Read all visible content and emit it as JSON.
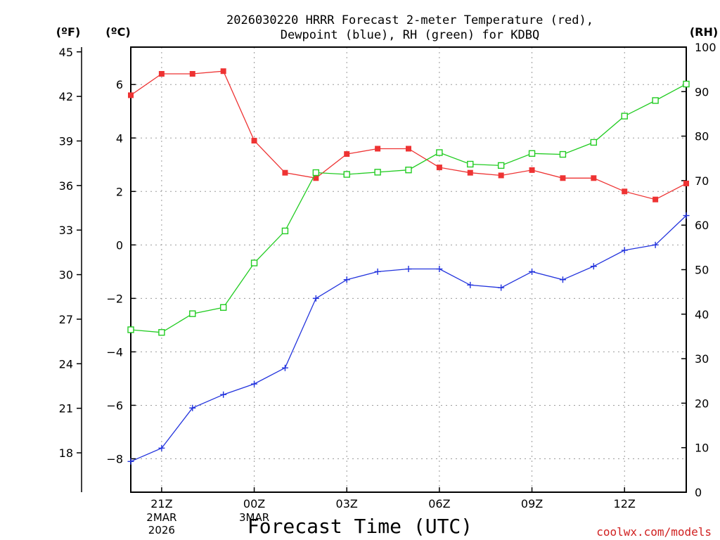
{
  "chart_data": {
    "type": "line",
    "title_line1": "2026030220 HRRR Forecast 2-meter Temperature (red),",
    "title_line2": "Dewpoint (blue), RH (green) for KDBQ",
    "xlabel": "Forecast Time (UTC)",
    "credit": "coolwx.com/models",
    "units": {
      "fahrenheit": "(ºF)",
      "celsius": "(ºC)",
      "rh": "(RH)"
    },
    "x_hours": [
      20,
      21,
      22,
      23,
      24,
      25,
      26,
      27,
      28,
      29,
      30,
      31,
      32,
      33,
      34,
      35,
      36,
      37,
      38
    ],
    "xlim": [
      20,
      38
    ],
    "x_ticks": [
      {
        "hour": 21,
        "label": "21Z"
      },
      {
        "hour": 24,
        "label": "00Z"
      },
      {
        "hour": 27,
        "label": "03Z"
      },
      {
        "hour": 30,
        "label": "06Z"
      },
      {
        "hour": 33,
        "label": "09Z"
      },
      {
        "hour": 36,
        "label": "12Z"
      }
    ],
    "date_labels": [
      {
        "hour": 21,
        "lines": [
          "2MAR",
          "2026"
        ]
      },
      {
        "hour": 24,
        "lines": [
          "3MAR"
        ]
      }
    ],
    "celsius_axis": {
      "ylim": [
        -9.25,
        7.4
      ],
      "ticks": [
        6,
        4,
        2,
        0,
        -2,
        -4,
        -6,
        -8
      ]
    },
    "fahrenheit_axis": {
      "ticks": [
        45,
        42,
        39,
        36,
        33,
        30,
        27,
        24,
        21,
        18
      ]
    },
    "rh_axis": {
      "ylim": [
        0,
        100
      ],
      "ticks": [
        100,
        90,
        80,
        70,
        60,
        50,
        40,
        30,
        20,
        10,
        0
      ]
    },
    "series": [
      {
        "name": "2-meter Temperature",
        "axis": "celsius",
        "color": "#ee3333",
        "marker": "filled-square",
        "values": [
          5.6,
          6.4,
          6.4,
          6.5,
          3.9,
          2.7,
          2.5,
          3.4,
          3.6,
          3.6,
          2.9,
          2.7,
          2.6,
          2.8,
          2.5,
          2.5,
          2.0,
          1.7,
          2.3
        ]
      },
      {
        "name": "Dewpoint",
        "axis": "celsius",
        "color": "#2233dd",
        "marker": "plus",
        "values": [
          -8.1,
          -7.6,
          -6.1,
          -5.6,
          -5.2,
          -4.6,
          -2.0,
          -1.3,
          -1.0,
          -0.9,
          -0.9,
          -1.5,
          -1.6,
          -1.0,
          -1.3,
          -0.8,
          -0.2,
          0.0,
          1.1
        ]
      },
      {
        "name": "RH",
        "axis": "rh",
        "color": "#22cc22",
        "marker": "open-square",
        "values": [
          36.5,
          35.9,
          40.1,
          41.5,
          51.5,
          58.7,
          71.8,
          71.4,
          71.9,
          72.4,
          76.3,
          73.7,
          73.4,
          76.1,
          75.9,
          78.6,
          84.5,
          88.0,
          91.7
        ]
      }
    ]
  }
}
